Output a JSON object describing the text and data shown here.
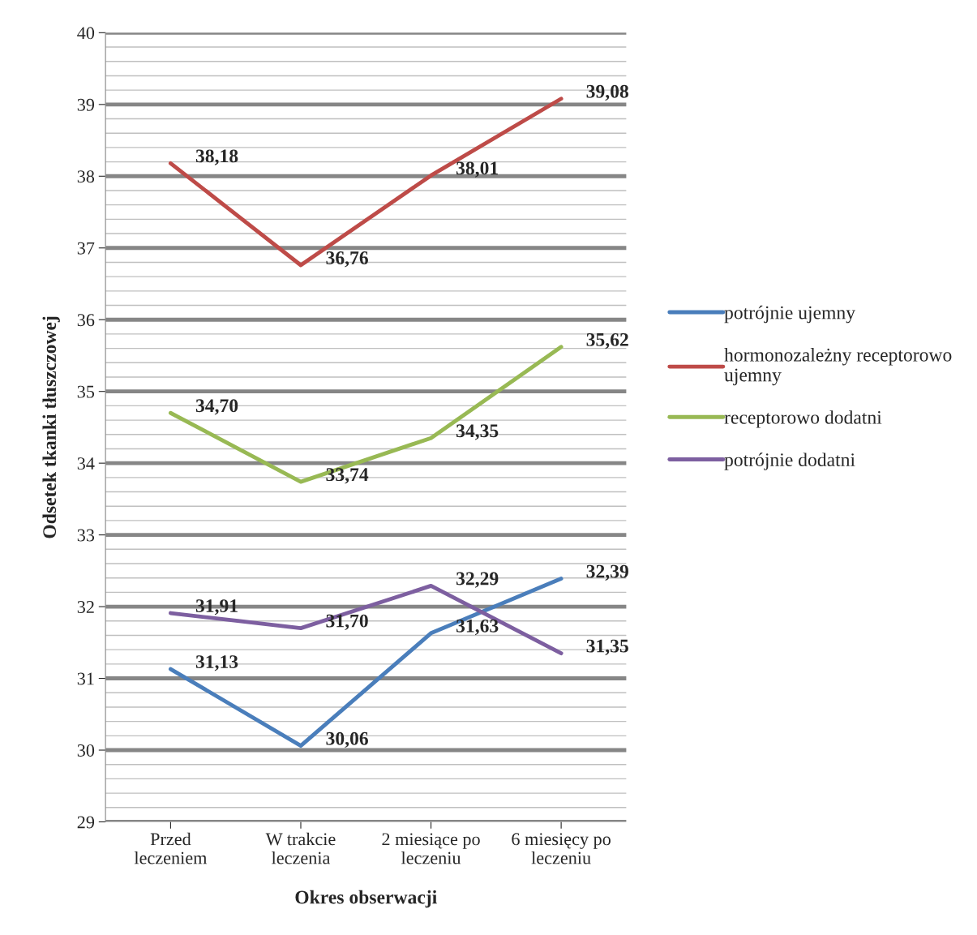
{
  "chart_data": {
    "type": "line",
    "xlabel": "Okres obserwacji",
    "ylabel": "Odsetek tkanki tłuszczowej",
    "categories": [
      "Przed\nleczeniem",
      "W trakcie\nleczenia",
      "2 miesiące po\nleczeniu",
      "6 miesięcy po\nleczeniu"
    ],
    "series": [
      {
        "name": "potrójnie ujemny",
        "color": "#4a7ebb",
        "values": [
          31.13,
          30.06,
          31.63,
          32.39
        ],
        "value_labels": [
          "31,13",
          "30,06",
          "31,63",
          "32,39"
        ]
      },
      {
        "name": "hormonozależny receptorowo ujemny",
        "color": "#be4b48",
        "values": [
          38.18,
          36.76,
          38.01,
          39.08
        ],
        "value_labels": [
          "38,18",
          "36,76",
          "38,01",
          "39,08"
        ]
      },
      {
        "name": "receptorowo dodatni",
        "color": "#98b954",
        "values": [
          34.7,
          33.74,
          34.35,
          35.62
        ],
        "value_labels": [
          "34,70",
          "33,74",
          "34,35",
          "35,62"
        ]
      },
      {
        "name": "potrójnie dodatni",
        "color": "#7d5fa0",
        "values": [
          31.91,
          31.7,
          32.29,
          31.35
        ],
        "value_labels": [
          "31,91",
          "31,70",
          "32,29",
          "31,35"
        ]
      }
    ],
    "ylim": [
      29,
      40
    ],
    "yticks": [
      29,
      30,
      31,
      32,
      33,
      34,
      35,
      36,
      37,
      38,
      39,
      40
    ],
    "grid": "y",
    "legend": "right",
    "marker": "none",
    "line_style": "solid"
  }
}
